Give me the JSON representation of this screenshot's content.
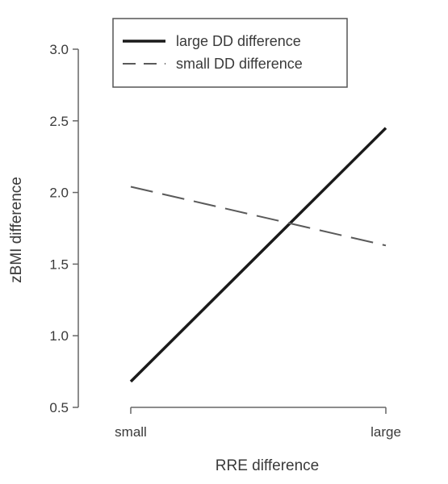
{
  "chart_data": {
    "type": "line",
    "xlabel": "RRE difference",
    "ylabel": "zBMI difference",
    "categories": [
      "small",
      "large"
    ],
    "ylim": [
      0.5,
      3.0
    ],
    "yticks": [
      "0.5",
      "1.0",
      "1.5",
      "2.0",
      "2.5",
      "3.0"
    ],
    "grid": false,
    "legend_position": "top-center",
    "series": [
      {
        "name": "large DD difference",
        "values": [
          0.68,
          2.45
        ],
        "style": "solid",
        "color": "#1a1a1a"
      },
      {
        "name": "small DD difference",
        "values": [
          2.04,
          1.63
        ],
        "style": "dashed",
        "color": "#5a5a5a"
      }
    ]
  }
}
